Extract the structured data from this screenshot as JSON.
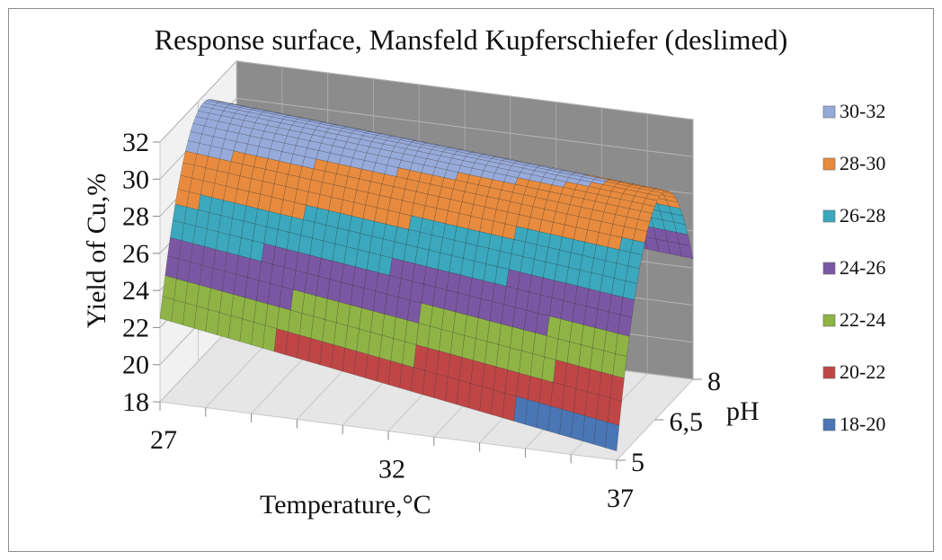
{
  "chart_data": {
    "type": "surface",
    "title": "Response surface, Mansfeld Kupferschiefer (deslimed)",
    "xlabel": "Temperature,°C",
    "ylabel": "pH",
    "zlabel": "Yield of Cu,%",
    "x_ticks": [
      "27",
      "32",
      "37"
    ],
    "y_ticks": [
      "5",
      "6,5",
      "8"
    ],
    "z_ticks": [
      "18",
      "20",
      "22",
      "24",
      "26",
      "28",
      "30",
      "32"
    ],
    "xlim": [
      27,
      37
    ],
    "ylim": [
      5,
      8
    ],
    "zlim": [
      18,
      32
    ],
    "grid": true,
    "legend_position": "right",
    "bands": [
      {
        "label": "30-32",
        "min": 30,
        "max": 32,
        "color": "#97abdb"
      },
      {
        "label": "28-30",
        "min": 28,
        "max": 30,
        "color": "#e88b3e"
      },
      {
        "label": "26-28",
        "min": 26,
        "max": 28,
        "color": "#3ba8bd"
      },
      {
        "label": "24-26",
        "min": 24,
        "max": 26,
        "color": "#7b57a3"
      },
      {
        "label": "22-24",
        "min": 22,
        "max": 24,
        "color": "#8fb445"
      },
      {
        "label": "20-22",
        "min": 20,
        "max": 22,
        "color": "#c04646"
      },
      {
        "label": "18-20",
        "min": 18,
        "max": 20,
        "color": "#4a76b5"
      }
    ],
    "surface_points": [
      {
        "temperature": 27,
        "pH": 5,
        "yield": 22.5
      },
      {
        "temperature": 37,
        "pH": 5,
        "yield": 18.5
      },
      {
        "temperature": 27,
        "pH": 6.5,
        "yield": 31.5
      },
      {
        "temperature": 37,
        "pH": 6.5,
        "yield": 29.5
      },
      {
        "temperature": 27,
        "pH": 8,
        "yield": 26.5
      },
      {
        "temperature": 37,
        "pH": 8,
        "yield": 24.5
      }
    ]
  }
}
